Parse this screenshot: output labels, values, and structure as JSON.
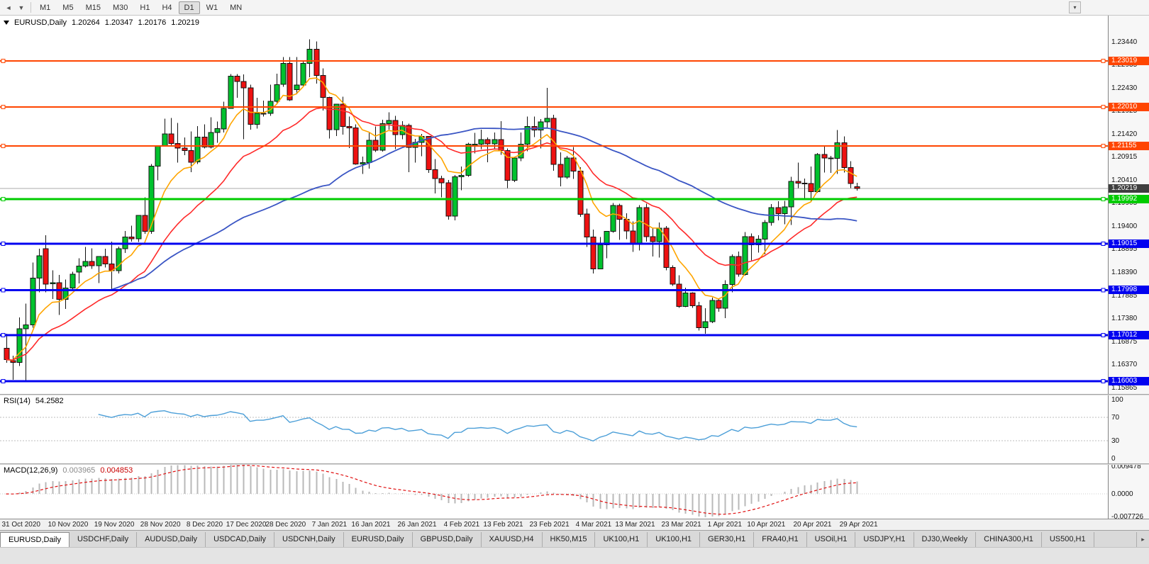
{
  "toolbar": {
    "timeframes": [
      "M1",
      "M5",
      "M15",
      "M30",
      "H1",
      "H4",
      "D1",
      "W1",
      "MN"
    ],
    "active_timeframe": "D1"
  },
  "quote": {
    "symbol": "EURUSD,Daily",
    "open": "1.20264",
    "high": "1.20347",
    "low": "1.20176",
    "close": "1.20219"
  },
  "tabs": [
    "EURUSD,Daily",
    "USDCHF,Daily",
    "AUDUSD,Daily",
    "USDCAD,Daily",
    "USDCNH,Daily",
    "EURUSD,Daily",
    "GBPUSD,Daily",
    "XAUUSD,H4",
    "HK50,M15",
    "UK100,H1",
    "UK100,H1",
    "GER30,H1",
    "FRA40,H1",
    "USOil,H1",
    "USDJPY,H1",
    "DJ30,Weekly",
    "CHINA300,H1",
    "US500,H1"
  ],
  "active_tab_index": 0,
  "chart_data": {
    "type": "candlestick",
    "symbol": "EURUSD",
    "timeframe": "Daily",
    "ylim": [
      1.1572,
      1.2401
    ],
    "colors": {
      "up": "#00C22E",
      "down": "#EE1111",
      "wick": "#111111",
      "ma_fast": "#FFA500",
      "ma_mid": "#FF2A2A",
      "ma_slow": "#3A55C4",
      "bid": "#ABABAB",
      "bid_badge": "#3F3F3F"
    },
    "candles": [
      [
        1.1672,
        1.1704,
        1.164,
        1.1647
      ],
      [
        1.1645,
        1.1656,
        1.1603,
        1.1641
      ],
      [
        1.1641,
        1.174,
        1.1633,
        1.1715
      ],
      [
        1.1715,
        1.177,
        1.1602,
        1.1723
      ],
      [
        1.1723,
        1.186,
        1.1717,
        1.1826
      ],
      [
        1.1826,
        1.189,
        1.1795,
        1.1875
      ],
      [
        1.189,
        1.192,
        1.1795,
        1.1813
      ],
      [
        1.1813,
        1.1843,
        1.178,
        1.1816
      ],
      [
        1.1816,
        1.1833,
        1.1745,
        1.1779
      ],
      [
        1.1779,
        1.1823,
        1.1758,
        1.1804
      ],
      [
        1.1804,
        1.184,
        1.1799,
        1.1834
      ],
      [
        1.1839,
        1.1869,
        1.1814,
        1.1852
      ],
      [
        1.1852,
        1.1894,
        1.1849,
        1.1862
      ],
      [
        1.1862,
        1.1891,
        1.1846,
        1.1853
      ],
      [
        1.1853,
        1.1874,
        1.1815,
        1.1873
      ],
      [
        1.1873,
        1.189,
        1.1849,
        1.1857
      ],
      [
        1.1857,
        1.1906,
        1.18,
        1.1842
      ],
      [
        1.1842,
        1.1895,
        1.1836,
        1.189
      ],
      [
        1.189,
        1.1929,
        1.1881,
        1.1916
      ],
      [
        1.1916,
        1.1941,
        1.1906,
        1.1912
      ],
      [
        1.1912,
        1.1963,
        1.1905,
        1.1963
      ],
      [
        1.1963,
        1.2003,
        1.1923,
        1.1928
      ],
      [
        1.1928,
        1.2076,
        1.1923,
        1.2071
      ],
      [
        1.2071,
        1.2117,
        1.204,
        1.2115
      ],
      [
        1.2115,
        1.2175,
        1.2114,
        1.2142
      ],
      [
        1.2142,
        1.2177,
        1.2116,
        1.2121
      ],
      [
        1.2121,
        1.2166,
        1.2079,
        1.2111
      ],
      [
        1.2111,
        1.2134,
        1.2095,
        1.2105
      ],
      [
        1.2105,
        1.2147,
        1.2058,
        1.208
      ],
      [
        1.208,
        1.2159,
        1.2076,
        1.2135
      ],
      [
        1.2135,
        1.2163,
        1.211,
        1.2113
      ],
      [
        1.2113,
        1.2178,
        1.211,
        1.2145
      ],
      [
        1.2145,
        1.2169,
        1.2122,
        1.2153
      ],
      [
        1.2153,
        1.2212,
        1.2145,
        1.2198
      ],
      [
        1.2198,
        1.2273,
        1.2197,
        1.2268
      ],
      [
        1.2268,
        1.2273,
        1.2221,
        1.2257
      ],
      [
        1.2257,
        1.2272,
        1.213,
        1.2243
      ],
      [
        1.2243,
        1.225,
        1.2151,
        1.2163
      ],
      [
        1.2163,
        1.2221,
        1.2153,
        1.2187
      ],
      [
        1.2187,
        1.2215,
        1.218,
        1.2187
      ],
      [
        1.2187,
        1.225,
        1.2181,
        1.2213
      ],
      [
        1.2213,
        1.2274,
        1.2208,
        1.225
      ],
      [
        1.225,
        1.231,
        1.2245,
        1.2296
      ],
      [
        1.2296,
        1.231,
        1.2214,
        1.2216
      ],
      [
        1.2239,
        1.231,
        1.2229,
        1.2249
      ],
      [
        1.2249,
        1.2303,
        1.2247,
        1.2296
      ],
      [
        1.2296,
        1.2349,
        1.2266,
        1.2327
      ],
      [
        1.2327,
        1.2344,
        1.2252,
        1.227
      ],
      [
        1.227,
        1.2285,
        1.2193,
        1.2222
      ],
      [
        1.2222,
        1.2223,
        1.2132,
        1.2151
      ],
      [
        1.2151,
        1.2208,
        1.2137,
        1.2207
      ],
      [
        1.2207,
        1.2223,
        1.214,
        1.2158
      ],
      [
        1.2158,
        1.218,
        1.2111,
        1.2155
      ],
      [
        1.2155,
        1.2163,
        1.2074,
        1.2076
      ],
      [
        1.2076,
        1.2092,
        1.2054,
        1.2079
      ],
      [
        1.2079,
        1.2145,
        1.2066,
        1.2128
      ],
      [
        1.2128,
        1.2158,
        1.2102,
        1.2106
      ],
      [
        1.2106,
        1.2173,
        1.2103,
        1.2164
      ],
      [
        1.2164,
        1.2189,
        1.2151,
        1.2171
      ],
      [
        1.2171,
        1.2181,
        1.2108,
        1.214
      ],
      [
        1.214,
        1.217,
        1.213,
        1.216
      ],
      [
        1.216,
        1.2164,
        1.2058,
        1.2112
      ],
      [
        1.2112,
        1.2131,
        1.2079,
        1.2123
      ],
      [
        1.2123,
        1.2142,
        1.2093,
        1.2136
      ],
      [
        1.2136,
        1.2136,
        1.2056,
        1.2063
      ],
      [
        1.2063,
        1.2087,
        1.2011,
        1.2044
      ],
      [
        1.2044,
        1.205,
        1.2003,
        1.2035
      ],
      [
        1.2035,
        1.2041,
        1.1954,
        1.1962
      ],
      [
        1.1962,
        1.2052,
        1.1952,
        1.2048
      ],
      [
        1.2048,
        1.207,
        1.2018,
        1.2051
      ],
      [
        1.2051,
        1.2122,
        1.2048,
        1.2119
      ],
      [
        1.2119,
        1.2144,
        1.2099,
        1.2119
      ],
      [
        1.2119,
        1.2151,
        1.2108,
        1.2129
      ],
      [
        1.2129,
        1.2134,
        1.208,
        1.212
      ],
      [
        1.212,
        1.2145,
        1.2109,
        1.2129
      ],
      [
        1.2129,
        1.217,
        1.2096,
        1.2105
      ],
      [
        1.2105,
        1.211,
        1.2023,
        1.204
      ],
      [
        1.204,
        1.209,
        1.2036,
        1.2089
      ],
      [
        1.2089,
        1.2145,
        1.2082,
        1.2119
      ],
      [
        1.2119,
        1.218,
        1.2104,
        1.2158
      ],
      [
        1.2158,
        1.218,
        1.2135,
        1.215
      ],
      [
        1.215,
        1.2174,
        1.211,
        1.2168
      ],
      [
        1.2168,
        1.2243,
        1.2155,
        1.2176
      ],
      [
        1.2176,
        1.2184,
        1.2061,
        1.2075
      ],
      [
        1.2075,
        1.2101,
        1.2027,
        1.2047
      ],
      [
        1.2047,
        1.2094,
        1.2043,
        1.2089
      ],
      [
        1.2089,
        1.2113,
        1.2043,
        1.206
      ],
      [
        1.206,
        1.2069,
        1.196,
        1.1966
      ],
      [
        1.1966,
        1.1978,
        1.1894,
        1.1916
      ],
      [
        1.1916,
        1.1932,
        1.1836,
        1.1846
      ],
      [
        1.1846,
        1.1916,
        1.1846,
        1.1899
      ],
      [
        1.1899,
        1.1928,
        1.1869,
        1.1928
      ],
      [
        1.1928,
        1.199,
        1.1925,
        1.1985
      ],
      [
        1.1985,
        1.1989,
        1.191,
        1.1955
      ],
      [
        1.1955,
        1.1968,
        1.1911,
        1.1929
      ],
      [
        1.1929,
        1.195,
        1.1883,
        1.19
      ],
      [
        1.19,
        1.1986,
        1.1886,
        1.198
      ],
      [
        1.198,
        1.1989,
        1.1906,
        1.1917
      ],
      [
        1.1917,
        1.1935,
        1.1873,
        1.1906
      ],
      [
        1.1906,
        1.1948,
        1.1871,
        1.1935
      ],
      [
        1.1935,
        1.194,
        1.1843,
        1.1849
      ],
      [
        1.1849,
        1.1854,
        1.1809,
        1.1813
      ],
      [
        1.1813,
        1.1832,
        1.1761,
        1.1764
      ],
      [
        1.1764,
        1.1805,
        1.1762,
        1.1793
      ],
      [
        1.1793,
        1.1795,
        1.1761,
        1.1765
      ],
      [
        1.1765,
        1.1774,
        1.1711,
        1.1717
      ],
      [
        1.1717,
        1.176,
        1.1704,
        1.173
      ],
      [
        1.173,
        1.1783,
        1.1727,
        1.1777
      ],
      [
        1.1777,
        1.1781,
        1.1752,
        1.176
      ],
      [
        1.176,
        1.1821,
        1.1738,
        1.1812
      ],
      [
        1.1812,
        1.1878,
        1.1795,
        1.1873
      ],
      [
        1.1873,
        1.1884,
        1.1829,
        1.1834
      ],
      [
        1.1834,
        1.1927,
        1.1831,
        1.1917
      ],
      [
        1.1917,
        1.1924,
        1.1865,
        1.1899
      ],
      [
        1.1899,
        1.192,
        1.1882,
        1.1911
      ],
      [
        1.1911,
        1.1953,
        1.1878,
        1.1948
      ],
      [
        1.1948,
        1.1988,
        1.1941,
        1.198
      ],
      [
        1.198,
        1.1994,
        1.1952,
        1.1967
      ],
      [
        1.1967,
        1.1995,
        1.1944,
        1.1982
      ],
      [
        1.1982,
        1.2048,
        1.1942,
        1.2038
      ],
      [
        1.2038,
        1.2079,
        1.2023,
        1.2034
      ],
      [
        1.2034,
        1.2044,
        1.2,
        1.2033
      ],
      [
        1.2033,
        1.207,
        1.1993,
        1.2015
      ],
      [
        1.2015,
        1.21,
        1.2013,
        1.2097
      ],
      [
        1.2097,
        1.2117,
        1.2057,
        1.2089
      ],
      [
        1.2089,
        1.2094,
        1.2056,
        1.2088
      ],
      [
        1.2088,
        1.215,
        1.2054,
        1.2122
      ],
      [
        1.2122,
        1.2136,
        1.2057,
        1.2068
      ],
      [
        1.2068,
        1.2082,
        1.2023,
        1.2033
      ],
      [
        1.20264,
        1.20347,
        1.20176,
        1.20219
      ]
    ],
    "time_labels": [
      {
        "i": 0,
        "t": "31 Oct 2020"
      },
      {
        "i": 7,
        "t": "10 Nov 2020"
      },
      {
        "i": 14,
        "t": "19 Nov 2020"
      },
      {
        "i": 21,
        "t": "28 Nov 2020"
      },
      {
        "i": 28,
        "t": "8 Dec 2020"
      },
      {
        "i": 34,
        "t": "17 Dec 2020"
      },
      {
        "i": 40,
        "t": "28 Dec 2020"
      },
      {
        "i": 47,
        "t": "7 Jan 2021"
      },
      {
        "i": 53,
        "t": "16 Jan 2021"
      },
      {
        "i": 60,
        "t": "26 Jan 2021"
      },
      {
        "i": 67,
        "t": "4 Feb 2021"
      },
      {
        "i": 73,
        "t": "13 Feb 2021"
      },
      {
        "i": 80,
        "t": "23 Feb 2021"
      },
      {
        "i": 87,
        "t": "4 Mar 2021"
      },
      {
        "i": 93,
        "t": "13 Mar 2021"
      },
      {
        "i": 100,
        "t": "23 Mar 2021"
      },
      {
        "i": 107,
        "t": "1 Apr 2021"
      },
      {
        "i": 113,
        "t": "10 Apr 2021"
      },
      {
        "i": 120,
        "t": "20 Apr 2021"
      },
      {
        "i": 127,
        "t": "29 Apr 2021"
      }
    ],
    "price_axis_labels": [
      "1.23440",
      "1.22935",
      "1.22430",
      "1.21925",
      "1.21420",
      "1.20915",
      "1.20410",
      "1.19905",
      "1.19400",
      "1.18895",
      "1.18390",
      "1.17885",
      "1.17380",
      "1.16875",
      "1.16370",
      "1.15865"
    ],
    "moving_averages": [
      {
        "name": "fast-ma",
        "type": "ema",
        "period": 8,
        "color": "#FFA500"
      },
      {
        "name": "mid-ma",
        "type": "ema",
        "period": 21,
        "color": "#FF2A2A"
      },
      {
        "name": "slow-ma",
        "type": "sma",
        "period": 50,
        "color": "#3A55C4"
      }
    ],
    "hlines": [
      {
        "price": 1.23019,
        "label": "1.23019",
        "color": "#FF4500",
        "width": 2
      },
      {
        "price": 1.2201,
        "label": "1.22010",
        "color": "#FF4500",
        "width": 2
      },
      {
        "price": 1.21155,
        "label": "1.21155",
        "color": "#FF4500",
        "width": 2
      },
      {
        "price": 1.19992,
        "label": "1.19992",
        "color": "#00CC00",
        "width": 3
      },
      {
        "price": 1.19015,
        "label": "1.19015",
        "color": "#0202F0",
        "width": 3
      },
      {
        "price": 1.17998,
        "label": "1.17998",
        "color": "#0202F0",
        "width": 3
      },
      {
        "price": 1.17012,
        "label": "1.17012",
        "color": "#0202F0",
        "width": 3
      },
      {
        "price": 1.16003,
        "label": "1.16003",
        "color": "#0202F0",
        "width": 3
      }
    ],
    "bid_line": {
      "price": 1.20219,
      "label": "1.20219"
    },
    "rsi": {
      "label": "RSI(14)",
      "value": "54.2582",
      "period": 14,
      "levels": [
        70,
        30
      ],
      "axis_labels": [
        "100",
        "70",
        "30",
        "0"
      ],
      "color": "#4C9FD8"
    },
    "macd": {
      "label": "MACD(12,26,9)",
      "macd_value": "0.003965",
      "signal_value": "0.004853",
      "axis_max": "0.009478",
      "axis_zero": "0.0000",
      "axis_min": "-0.007726",
      "hist_color": "#B9B9B9",
      "signal_color": "#E01010"
    }
  }
}
